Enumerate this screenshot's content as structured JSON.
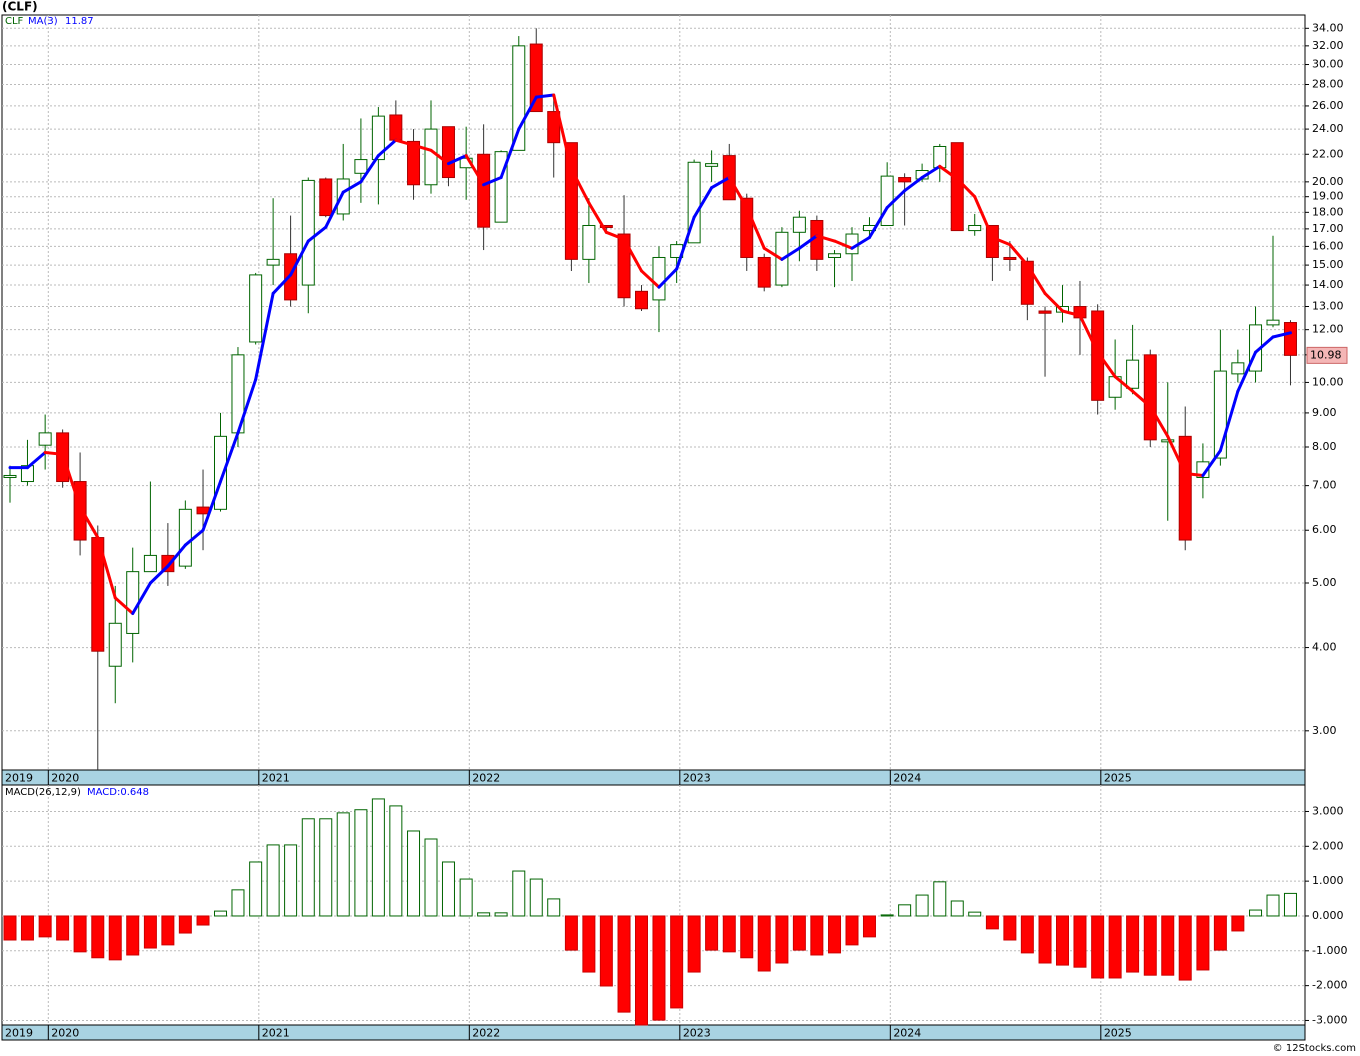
{
  "chart_data": [
    {
      "type": "candlestick",
      "title": "(CLF)",
      "symbol": "CLF",
      "log_scale": true,
      "grid": true,
      "up_color": "#006400",
      "down_color": "#ff0000",
      "x": [
        2019.818,
        2019.901,
        2019.985,
        2020.068,
        2020.151,
        2020.235,
        2020.318,
        2020.401,
        2020.485,
        2020.568,
        2020.651,
        2020.735,
        2020.818,
        2020.901,
        2020.985,
        2021.068,
        2021.151,
        2021.235,
        2021.318,
        2021.401,
        2021.485,
        2021.568,
        2021.651,
        2021.735,
        2021.818,
        2021.901,
        2021.985,
        2022.068,
        2022.151,
        2022.235,
        2022.318,
        2022.401,
        2022.485,
        2022.568,
        2022.651,
        2022.735,
        2022.818,
        2022.901,
        2022.985,
        2023.068,
        2023.151,
        2023.235,
        2023.318,
        2023.401,
        2023.485,
        2023.568,
        2023.651,
        2023.735,
        2023.818,
        2023.901,
        2023.985,
        2024.068,
        2024.151,
        2024.235,
        2024.318,
        2024.401,
        2024.485,
        2024.568,
        2024.651,
        2024.735,
        2024.818,
        2024.901,
        2024.985,
        2025.068,
        2025.151,
        2025.235,
        2025.318,
        2025.401,
        2025.485,
        2025.568,
        2025.651,
        2025.735,
        2025.818,
        2025.901
      ],
      "open": [
        7.2,
        7.1,
        8.05,
        8.4,
        7.1,
        5.85,
        3.75,
        4.2,
        5.2,
        5.5,
        5.3,
        6.5,
        6.45,
        8.4,
        11.5,
        15.0,
        15.6,
        14.0,
        20.2,
        17.9,
        20.6,
        21.6,
        25.2,
        23.0,
        19.8,
        24.2,
        21.0,
        22.0,
        17.4,
        22.3,
        32.2,
        25.5,
        22.9,
        15.3,
        17.2,
        16.7,
        13.7,
        13.3,
        15.4,
        16.2,
        21.1,
        21.9,
        18.9,
        15.4,
        14.0,
        16.8,
        17.5,
        15.4,
        15.6,
        16.9,
        17.2,
        20.3,
        20.2,
        21.0,
        22.9,
        16.9,
        17.2,
        15.4,
        15.2,
        12.8,
        12.75,
        13.0,
        12.8,
        9.5,
        9.8,
        11.0,
        8.15,
        8.3,
        7.2,
        7.7,
        10.3,
        10.4,
        12.2,
        12.3
      ],
      "high": [
        7.5,
        8.2,
        8.95,
        8.5,
        7.85,
        6.1,
        4.95,
        5.65,
        7.1,
        6.15,
        6.65,
        7.4,
        9.0,
        11.3,
        14.6,
        18.9,
        17.8,
        20.3,
        20.3,
        22.8,
        24.9,
        25.9,
        26.5,
        24.0,
        26.5,
        24.2,
        24.2,
        24.4,
        22.3,
        33.1,
        34.0,
        27.1,
        22.9,
        18.9,
        17.2,
        19.1,
        14.0,
        16.0,
        16.3,
        21.6,
        22.3,
        22.8,
        19.2,
        15.6,
        17.1,
        18.1,
        17.8,
        15.8,
        17.1,
        17.7,
        21.4,
        20.6,
        21.3,
        22.8,
        22.9,
        17.9,
        17.2,
        16.3,
        15.4,
        13.0,
        14.0,
        14.2,
        13.1,
        11.6,
        12.2,
        11.2,
        10.0,
        9.2,
        8.1,
        12.0,
        11.2,
        13.0,
        16.6,
        12.4
      ],
      "low": [
        6.6,
        7.0,
        7.4,
        6.95,
        5.5,
        2.62,
        3.3,
        3.8,
        5.2,
        4.95,
        5.25,
        5.6,
        6.4,
        8.0,
        11.4,
        14.0,
        13.0,
        12.7,
        17.7,
        17.5,
        18.6,
        18.5,
        23.0,
        18.8,
        19.2,
        19.7,
        18.8,
        15.8,
        17.4,
        22.3,
        25.5,
        20.3,
        14.7,
        14.1,
        16.7,
        13.0,
        12.8,
        11.9,
        14.1,
        16.2,
        20.0,
        18.8,
        14.7,
        13.7,
        13.9,
        15.2,
        14.7,
        13.9,
        14.2,
        16.6,
        17.2,
        17.2,
        20.0,
        20.0,
        16.9,
        16.6,
        14.2,
        14.7,
        12.4,
        10.2,
        12.3,
        11.0,
        8.95,
        9.1,
        9.6,
        8.0,
        6.2,
        5.6,
        6.7,
        7.5,
        10.0,
        10.0,
        12.1,
        9.9
      ],
      "close": [
        7.25,
        7.5,
        8.4,
        7.1,
        5.8,
        3.95,
        4.35,
        5.2,
        5.5,
        5.2,
        6.45,
        6.35,
        8.3,
        11.0,
        14.5,
        15.3,
        13.3,
        20.1,
        17.8,
        20.2,
        21.6,
        25.1,
        23.1,
        19.8,
        24.0,
        20.3,
        21.7,
        17.1,
        22.2,
        32.0,
        25.5,
        22.9,
        15.3,
        17.2,
        17.1,
        13.4,
        12.9,
        15.4,
        16.1,
        21.4,
        21.3,
        18.8,
        15.4,
        13.9,
        16.8,
        17.7,
        15.3,
        15.6,
        16.7,
        17.2,
        20.4,
        20.0,
        20.8,
        22.6,
        16.9,
        17.2,
        15.4,
        15.35,
        13.1,
        12.7,
        13.0,
        12.5,
        9.4,
        10.2,
        10.8,
        8.2,
        8.2,
        5.8,
        7.6,
        10.4,
        10.7,
        12.2,
        12.4,
        10.98
      ],
      "series": [
        {
          "name": "MA(3)",
          "up_color": "#0000ff",
          "down_color": "#ff0000",
          "last_label": "11.87",
          "values": [
            7.45,
            7.45,
            7.85,
            7.8,
            6.5,
            5.85,
            4.75,
            4.5,
            5.0,
            5.3,
            5.7,
            6.0,
            7.1,
            8.4,
            10.1,
            13.6,
            14.5,
            16.3,
            17.1,
            19.3,
            20.0,
            21.9,
            23.1,
            22.7,
            22.3,
            21.3,
            21.9,
            19.8,
            20.3,
            24.0,
            26.8,
            27.0,
            20.9,
            18.6,
            16.8,
            16.4,
            14.7,
            13.9,
            14.8,
            17.7,
            19.6,
            20.3,
            18.3,
            15.9,
            15.3,
            15.9,
            16.6,
            16.3,
            15.9,
            16.5,
            18.3,
            19.4,
            20.3,
            21.1,
            20.2,
            19.0,
            16.5,
            16.1,
            15.0,
            13.6,
            12.8,
            12.6,
            11.1,
            10.2,
            9.7,
            9.2,
            8.3,
            7.3,
            7.25,
            7.9,
            9.7,
            11.1,
            11.7,
            11.87
          ]
        }
      ],
      "xlim": [
        2019.78,
        2025.97
      ],
      "xticks": [
        {
          "value": 2019.78,
          "label": "2019"
        },
        2020,
        2021,
        2022,
        2023,
        2024,
        2025
      ],
      "ylim": [
        2.62,
        35.6
      ],
      "yticks": [
        {
          "value": 34,
          "label": "34.00"
        },
        {
          "value": 32,
          "label": "32.00"
        },
        {
          "value": 30,
          "label": "30.00"
        },
        {
          "value": 28,
          "label": "28.00"
        },
        {
          "value": 26,
          "label": "26.00"
        },
        {
          "value": 24,
          "label": "24.00"
        },
        {
          "value": 22,
          "label": "22.00"
        },
        {
          "value": 20,
          "label": "20.00"
        },
        {
          "value": 19,
          "label": "19.00"
        },
        {
          "value": 18,
          "label": "18.00"
        },
        {
          "value": 17,
          "label": "17.00"
        },
        {
          "value": 16,
          "label": "16.00"
        },
        {
          "value": 15,
          "label": "15.00"
        },
        {
          "value": 14,
          "label": "14.00"
        },
        {
          "value": 13,
          "label": "13.00"
        },
        {
          "value": 12,
          "label": "12.00"
        },
        {
          "value": 11,
          "label": "11.00"
        },
        {
          "value": 10,
          "label": "10.00"
        },
        {
          "value": 9,
          "label": "9.00"
        },
        {
          "value": 8,
          "label": "8.00"
        },
        {
          "value": 7,
          "label": "7.00"
        },
        {
          "value": 6,
          "label": "6.00"
        },
        {
          "value": 5,
          "label": "5.00"
        },
        {
          "value": 4,
          "label": "4.00"
        },
        {
          "value": 3,
          "label": "3.00"
        }
      ]
    },
    {
      "type": "histogram_bar",
      "title": "MACD(26,12,9)",
      "value_text": "MACD:0.648",
      "grid": true,
      "up_color": "#006400",
      "down_color": "#ff0000",
      "x": [
        2019.818,
        2019.901,
        2019.985,
        2020.068,
        2020.151,
        2020.235,
        2020.318,
        2020.401,
        2020.485,
        2020.568,
        2020.651,
        2020.735,
        2020.818,
        2020.901,
        2020.985,
        2021.068,
        2021.151,
        2021.235,
        2021.318,
        2021.401,
        2021.485,
        2021.568,
        2021.651,
        2021.735,
        2021.818,
        2021.901,
        2021.985,
        2022.068,
        2022.151,
        2022.235,
        2022.318,
        2022.401,
        2022.485,
        2022.568,
        2022.651,
        2022.735,
        2022.818,
        2022.901,
        2022.985,
        2023.068,
        2023.151,
        2023.235,
        2023.318,
        2023.401,
        2023.485,
        2023.568,
        2023.651,
        2023.735,
        2023.818,
        2023.901,
        2023.985,
        2024.068,
        2024.151,
        2024.235,
        2024.318,
        2024.401,
        2024.485,
        2024.568,
        2024.651,
        2024.735,
        2024.818,
        2024.901,
        2024.985,
        2025.068,
        2025.151,
        2025.235,
        2025.318,
        2025.401,
        2025.485,
        2025.568,
        2025.651,
        2025.735,
        2025.818,
        2025.901
      ],
      "values": [
        -0.69,
        -0.69,
        -0.6,
        -0.69,
        -1.03,
        -1.2,
        -1.26,
        -1.12,
        -0.92,
        -0.83,
        -0.49,
        -0.26,
        0.14,
        0.75,
        1.55,
        2.04,
        2.04,
        2.79,
        2.79,
        2.96,
        3.05,
        3.36,
        3.16,
        2.44,
        2.21,
        1.55,
        1.06,
        0.09,
        0.09,
        1.29,
        1.06,
        0.49,
        -0.98,
        -1.61,
        -2.01,
        -2.76,
        -3.13,
        -2.99,
        -2.64,
        -1.61,
        -0.98,
        -1.03,
        -1.2,
        -1.58,
        -1.35,
        -0.98,
        -1.12,
        -1.06,
        -0.83,
        -0.6,
        0.03,
        0.32,
        0.6,
        0.98,
        0.43,
        0.11,
        -0.37,
        -0.69,
        -1.06,
        -1.35,
        -1.41,
        -1.47,
        -1.78,
        -1.78,
        -1.61,
        -1.7,
        -1.7,
        -1.84,
        -1.55,
        -0.98,
        -0.43,
        0.17,
        0.6,
        0.648
      ],
      "xlim": [
        2019.78,
        2025.97
      ],
      "xticks": [
        {
          "value": 2019.78,
          "label": "2019"
        },
        2020,
        2021,
        2022,
        2023,
        2024,
        2025
      ],
      "ylim": [
        -3.13,
        3.76
      ],
      "yticks": [
        {
          "value": 3,
          "label": "3.000"
        },
        {
          "value": 2,
          "label": "2.000"
        },
        {
          "value": 1,
          "label": "1.000"
        },
        {
          "value": 0,
          "label": "0.000"
        },
        {
          "value": -1,
          "label": "-1.000"
        },
        {
          "value": -2,
          "label": "-2.000"
        },
        {
          "value": -3,
          "label": "-3.000"
        }
      ]
    }
  ],
  "footer": "© 12Stocks.com"
}
